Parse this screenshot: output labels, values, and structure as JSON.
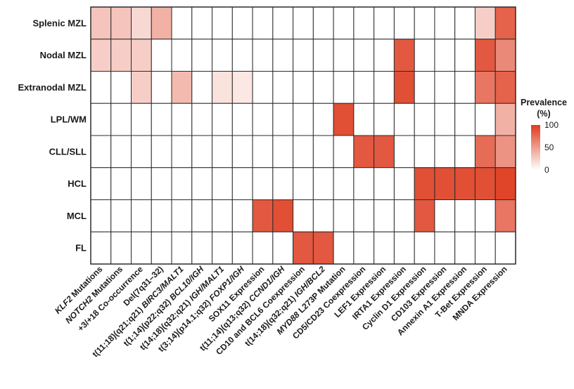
{
  "chart_data": {
    "type": "heatmap",
    "rows": [
      "Splenic MZL",
      "Nodal MZL",
      "Extranodal MZL",
      "LPL/WM",
      "CLL/SLL",
      "HCL",
      "MCL",
      "FL"
    ],
    "columns": [
      {
        "pre": "",
        "ital": "KLF2",
        "post": " Mutations"
      },
      {
        "pre": "",
        "ital": "NOTCH2",
        "post": " Mutations"
      },
      {
        "pre": "+3/+18 Co-occurrence",
        "ital": "",
        "post": ""
      },
      {
        "pre": "Del(7q31–32)",
        "ital": "",
        "post": ""
      },
      {
        "pre": "t(11;18)(q21;q21) ",
        "ital": "BIRC3/MALT1",
        "post": ""
      },
      {
        "pre": "t(1;14)(p22;q32) ",
        "ital": "BCL10/IGH",
        "post": ""
      },
      {
        "pre": "t(14;18)(q32;q21) ",
        "ital": "IGH/MALT1",
        "post": ""
      },
      {
        "pre": "t(3;14)(p14.1;q32) ",
        "ital": "FOXP1/IGH",
        "post": ""
      },
      {
        "pre": "SOX11 Expression",
        "ital": "",
        "post": ""
      },
      {
        "pre": "t(11;14)(q13;q32) ",
        "ital": "CCND1/IGH",
        "post": ""
      },
      {
        "pre": "CD10 and BCL6 Coexpression",
        "ital": "",
        "post": ""
      },
      {
        "pre": "t(14;18)(q32;q21) ",
        "ital": "IGH/BCL2",
        "post": ""
      },
      {
        "pre": "",
        "ital": "MYD88",
        "post": " L273P Mutation"
      },
      {
        "pre": "CD5/CD23 Coexpression",
        "ital": "",
        "post": ""
      },
      {
        "pre": "LEF1 Expression",
        "ital": "",
        "post": ""
      },
      {
        "pre": "IRTA1 Expression",
        "ital": "",
        "post": ""
      },
      {
        "pre": "Cyclin D1 Expression",
        "ital": "",
        "post": ""
      },
      {
        "pre": "CD103 Expression",
        "ital": "",
        "post": ""
      },
      {
        "pre": "Annexin A1 Expression",
        "ital": "",
        "post": ""
      },
      {
        "pre": "T-Bet Expression",
        "ital": "",
        "post": ""
      },
      {
        "pre": "MNDA Expression",
        "ital": "",
        "post": ""
      }
    ],
    "values": [
      [
        30,
        30,
        20,
        40,
        0,
        0,
        0,
        0,
        0,
        0,
        0,
        0,
        0,
        0,
        0,
        0,
        0,
        0,
        0,
        25,
        80
      ],
      [
        25,
        25,
        25,
        0,
        0,
        0,
        0,
        0,
        0,
        0,
        0,
        0,
        0,
        0,
        0,
        85,
        0,
        0,
        0,
        85,
        60
      ],
      [
        0,
        0,
        25,
        0,
        35,
        0,
        15,
        12,
        0,
        0,
        0,
        0,
        0,
        0,
        0,
        90,
        0,
        0,
        0,
        70,
        80
      ],
      [
        0,
        0,
        0,
        0,
        0,
        0,
        0,
        0,
        0,
        0,
        0,
        0,
        90,
        0,
        0,
        0,
        0,
        0,
        0,
        0,
        40
      ],
      [
        0,
        0,
        0,
        0,
        0,
        0,
        0,
        0,
        0,
        0,
        0,
        0,
        0,
        85,
        85,
        0,
        0,
        0,
        0,
        75,
        55
      ],
      [
        0,
        0,
        0,
        0,
        0,
        0,
        0,
        0,
        0,
        0,
        0,
        0,
        0,
        0,
        0,
        0,
        90,
        90,
        90,
        90,
        95
      ],
      [
        0,
        0,
        0,
        0,
        0,
        0,
        0,
        0,
        85,
        90,
        0,
        0,
        0,
        0,
        0,
        0,
        85,
        0,
        0,
        0,
        70
      ],
      [
        0,
        0,
        0,
        0,
        0,
        0,
        0,
        0,
        0,
        0,
        85,
        85,
        0,
        0,
        0,
        0,
        0,
        0,
        0,
        0,
        0
      ]
    ],
    "colorscale": {
      "low": "#ffffff",
      "high": "#de3b1e",
      "min": 0,
      "max": 100
    },
    "legend": {
      "title_line1": "Prevalence",
      "title_line2": "(%)",
      "ticks": [
        100,
        50,
        0
      ],
      "placement": "right"
    }
  }
}
